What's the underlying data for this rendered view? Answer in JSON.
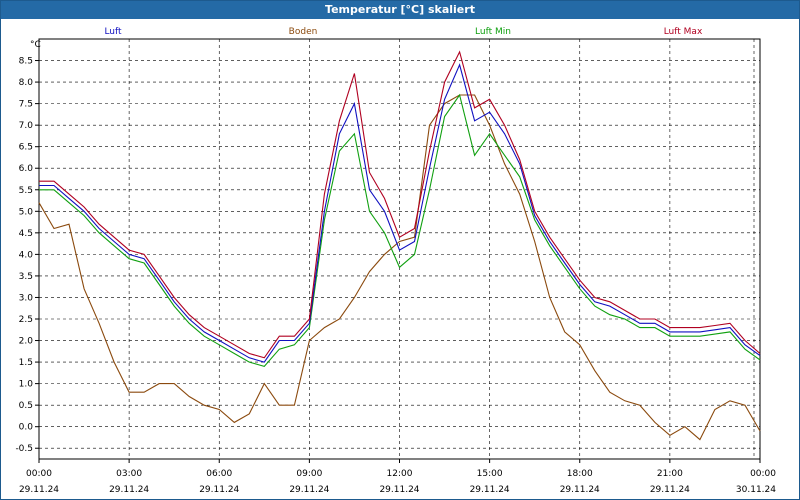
{
  "window": {
    "title": "Temperatur [°C] skaliert"
  },
  "chart_data": {
    "type": "line",
    "title": "Temperatur [°C] skaliert",
    "ylabel": "°C",
    "xlabel": "",
    "ylim": [
      -0.75,
      9.0
    ],
    "xlim": [
      0,
      24
    ],
    "grid": true,
    "legend": "top",
    "yticks": [
      -0.5,
      0.0,
      0.5,
      1.0,
      1.5,
      2.0,
      2.5,
      3.0,
      3.5,
      4.0,
      4.5,
      5.0,
      5.5,
      6.0,
      6.5,
      7.0,
      7.5,
      8.0,
      8.5
    ],
    "ytick_labels": [
      "-0.5",
      "0.0",
      "0.5",
      "1.0",
      "1.5",
      "2.0",
      "2.5",
      "3.0",
      "3.5",
      "4.0",
      "4.5",
      "5.0",
      "5.5",
      "6.0",
      "6.5",
      "7.0",
      "7.5",
      "8.0",
      "8.5"
    ],
    "xticks": [
      0,
      3,
      6,
      9,
      12,
      15,
      18,
      21,
      24
    ],
    "xtick_labels": [
      {
        "time": "00:00",
        "date": "29.11.24"
      },
      {
        "time": "03:00",
        "date": "29.11.24"
      },
      {
        "time": "06:00",
        "date": "29.11.24"
      },
      {
        "time": "09:00",
        "date": "29.11.24"
      },
      {
        "time": "12:00",
        "date": "29.11.24"
      },
      {
        "time": "15:00",
        "date": "29.11.24"
      },
      {
        "time": "18:00",
        "date": "29.11.24"
      },
      {
        "time": "21:00",
        "date": "29.11.24"
      },
      {
        "time": "00:00",
        "date": "30.11.24"
      }
    ],
    "x": [
      0,
      0.5,
      1,
      1.5,
      2,
      2.5,
      3,
      3.5,
      4,
      4.5,
      5,
      5.5,
      6,
      6.5,
      7,
      7.5,
      8,
      8.5,
      9,
      9.5,
      10,
      10.5,
      11,
      11.5,
      12,
      12.5,
      13,
      13.5,
      14,
      14.5,
      15,
      15.5,
      16,
      16.5,
      17,
      17.5,
      18,
      18.5,
      19,
      19.5,
      20,
      20.5,
      21,
      21.5,
      22,
      22.5,
      23,
      23.5,
      24
    ],
    "series": [
      {
        "name": "Luft",
        "color": "#1010c0",
        "values": [
          5.6,
          5.6,
          5.3,
          5.0,
          4.6,
          4.3,
          4.0,
          3.9,
          3.4,
          2.9,
          2.5,
          2.2,
          2.0,
          1.8,
          1.6,
          1.5,
          2.0,
          2.0,
          2.4,
          5.0,
          6.8,
          7.5,
          5.5,
          5.0,
          4.1,
          4.3,
          6.0,
          7.6,
          8.4,
          7.1,
          7.3,
          6.8,
          6.1,
          4.9,
          4.3,
          3.8,
          3.3,
          2.9,
          2.8,
          2.6,
          2.4,
          2.4,
          2.2,
          2.2,
          2.2,
          2.25,
          2.3,
          1.9,
          1.65
        ]
      },
      {
        "name": "Boden",
        "color": "#8b4a0e",
        "values": [
          5.2,
          4.6,
          4.7,
          3.2,
          2.4,
          1.5,
          0.8,
          0.8,
          1.0,
          1.0,
          0.7,
          0.5,
          0.4,
          0.1,
          0.3,
          1.0,
          0.5,
          0.5,
          2.0,
          2.3,
          2.5,
          3.0,
          3.6,
          4.0,
          4.3,
          4.4,
          7.0,
          7.5,
          7.7,
          7.7,
          7.0,
          6.1,
          5.4,
          4.3,
          3.0,
          2.2,
          1.9,
          1.3,
          0.8,
          0.6,
          0.5,
          0.1,
          -0.2,
          0.0,
          -0.3,
          0.4,
          0.6,
          0.5,
          -0.1
        ]
      },
      {
        "name": "Luft Min",
        "color": "#10a010",
        "values": [
          5.5,
          5.5,
          5.2,
          4.9,
          4.5,
          4.2,
          3.9,
          3.8,
          3.3,
          2.8,
          2.4,
          2.1,
          1.9,
          1.7,
          1.5,
          1.4,
          1.8,
          1.9,
          2.3,
          4.8,
          6.4,
          6.8,
          5.0,
          4.5,
          3.7,
          4.0,
          5.5,
          7.2,
          7.7,
          6.3,
          6.8,
          6.3,
          5.8,
          4.8,
          4.2,
          3.7,
          3.2,
          2.8,
          2.6,
          2.5,
          2.3,
          2.3,
          2.1,
          2.1,
          2.1,
          2.15,
          2.2,
          1.8,
          1.55
        ]
      },
      {
        "name": "Luft Max",
        "color": "#b00020",
        "values": [
          5.7,
          5.7,
          5.4,
          5.1,
          4.7,
          4.4,
          4.1,
          4.0,
          3.5,
          3.0,
          2.6,
          2.3,
          2.1,
          1.9,
          1.7,
          1.6,
          2.1,
          2.1,
          2.5,
          5.4,
          7.1,
          8.2,
          5.9,
          5.3,
          4.4,
          4.6,
          6.4,
          8.0,
          8.7,
          7.4,
          7.6,
          7.0,
          6.2,
          5.0,
          4.4,
          3.9,
          3.4,
          3.0,
          2.9,
          2.7,
          2.5,
          2.5,
          2.3,
          2.3,
          2.3,
          2.35,
          2.4,
          2.0,
          1.7
        ]
      }
    ]
  }
}
